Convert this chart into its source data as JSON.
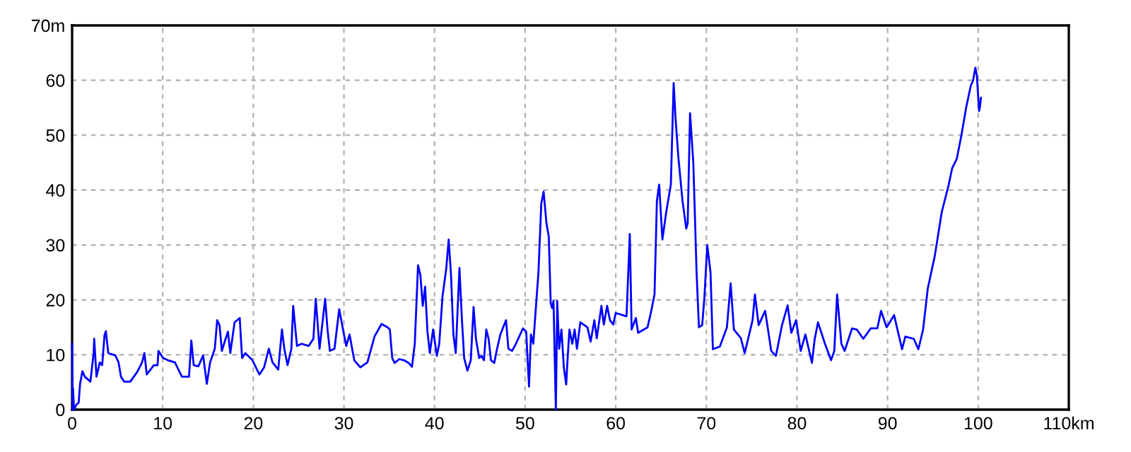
{
  "chart_data": {
    "type": "line",
    "x": [
      0,
      0.05,
      0.1,
      0.21,
      0.47,
      0.73,
      0.88,
      1.14,
      1.4,
      2.02,
      2.38,
      2.44,
      2.69,
      3.06,
      3.32,
      3.58,
      3.73,
      3.99,
      4.77,
      5.13,
      5.39,
      5.75,
      6.42,
      7.2,
      7.72,
      7.98,
      8.24,
      9.02,
      9.43,
      9.53,
      10.05,
      10.57,
      11.35,
      12.12,
      12.9,
      13.16,
      13.42,
      13.94,
      14.46,
      14.87,
      15.23,
      15.75,
      16.01,
      16.27,
      16.53,
      16.94,
      17.2,
      17.46,
      17.93,
      18.5,
      18.76,
      19.12,
      19.9,
      20.67,
      21.19,
      21.71,
      22.12,
      22.75,
      23.16,
      23.42,
      23.78,
      24.2,
      24.4,
      24.82,
      25.34,
      26.11,
      26.63,
      26.89,
      27.31,
      27.93,
      28.19,
      28.45,
      28.96,
      29.48,
      30.0,
      30.26,
      30.62,
      31.14,
      31.81,
      32.59,
      33.37,
      34.15,
      34.81,
      35.07,
      35.33,
      35.59,
      36.11,
      36.63,
      37.15,
      37.51,
      37.82,
      38.18,
      38.44,
      38.7,
      38.96,
      39.22,
      39.48,
      39.84,
      40.26,
      40.52,
      40.88,
      41.3,
      41.56,
      41.82,
      42.08,
      42.34,
      42.75,
      43.01,
      43.27,
      43.63,
      44.0,
      44.31,
      44.57,
      44.93,
      45.19,
      45.45,
      45.71,
      45.97,
      46.23,
      46.59,
      46.9,
      47.27,
      47.89,
      48.15,
      48.56,
      48.98,
      49.34,
      49.76,
      50.12,
      50.27,
      50.43,
      50.64,
      50.9,
      51.16,
      51.47,
      51.78,
      52.04,
      52.35,
      52.61,
      52.82,
      52.97,
      53.13,
      53.39,
      53.54,
      53.75,
      54.01,
      54.27,
      54.53,
      54.69,
      54.89,
      55.2,
      55.46,
      55.72,
      56.09,
      56.45,
      56.87,
      57.23,
      57.64,
      57.9,
      58.42,
      58.68,
      59.05,
      59.36,
      59.72,
      60.0,
      61.19,
      61.55,
      61.75,
      62.22,
      62.47,
      63.51,
      63.87,
      64.28,
      64.54,
      64.79,
      65.15,
      65.57,
      66.08,
      66.39,
      66.6,
      66.91,
      67.37,
      67.78,
      67.94,
      68.2,
      68.56,
      68.92,
      69.18,
      69.54,
      69.79,
      70.1,
      70.46,
      70.72,
      71.49,
      72.27,
      72.68,
      73.04,
      73.81,
      74.23,
      75.1,
      75.36,
      75.77,
      76.49,
      77.16,
      77.68,
      78.35,
      78.97,
      79.38,
      79.9,
      80.41,
      80.93,
      81.65,
      81.96,
      82.32,
      83.09,
      83.76,
      84.12,
      84.43,
      84.9,
      85.26,
      86.08,
      86.6,
      87.32,
      88.14,
      88.87,
      89.28,
      89.9,
      90.72,
      91.6,
      91.96,
      92.89,
      93.4,
      93.92,
      94.43,
      95.21,
      95.98,
      96.75,
      97.13,
      97.64,
      98.15,
      98.67,
      99.18,
      99.44,
      99.69,
      99.85,
      100.1,
      100.2,
      100.3
    ],
    "series": [
      {
        "color": "#0000ff",
        "values": [
          12,
          0,
          3.9,
          0,
          0.9,
          1.3,
          4.7,
          7,
          6,
          5.1,
          10.3,
          12.9,
          6,
          8.6,
          8.1,
          13.6,
          14.3,
          10.3,
          9.9,
          8.6,
          6,
          5.1,
          5.1,
          6.9,
          8.6,
          10.3,
          6.4,
          8.1,
          8.1,
          10.7,
          9.4,
          9,
          8.6,
          6,
          6,
          12.6,
          8.1,
          7.9,
          9.9,
          4.7,
          8.6,
          11.1,
          16.3,
          15.4,
          10.7,
          12.9,
          14.2,
          10.3,
          15.9,
          16.7,
          9.4,
          10.3,
          9,
          6.4,
          7.7,
          11.1,
          8.6,
          7.3,
          14.6,
          11.1,
          8.1,
          11.1,
          18.9,
          11.6,
          12,
          11.6,
          12.9,
          20.2,
          11.1,
          20.2,
          14.6,
          10.7,
          11.1,
          18.3,
          13.7,
          11.6,
          13.7,
          9,
          7.7,
          8.6,
          13.3,
          15.6,
          15,
          14.6,
          9.4,
          8.5,
          9.2,
          9,
          8.5,
          7.8,
          12,
          26.3,
          24.5,
          18.9,
          22.4,
          14.2,
          10.3,
          14.6,
          9.8,
          12,
          20.6,
          25.8,
          31,
          24.5,
          13.7,
          10.3,
          25.8,
          16.8,
          9.4,
          7.1,
          9,
          18.7,
          12.9,
          9.4,
          9.8,
          9,
          14.6,
          12.9,
          9,
          8.5,
          11.1,
          13.7,
          16.3,
          11.1,
          10.7,
          12,
          13.3,
          14.8,
          14.2,
          9,
          4.2,
          13.7,
          12,
          18,
          25,
          37.5,
          39.7,
          34,
          31.5,
          19.4,
          18.5,
          19.8,
          0,
          19.8,
          11.1,
          14.6,
          7.7,
          4.6,
          9.4,
          14.6,
          12,
          14.6,
          11.1,
          15.9,
          15.5,
          15,
          12.4,
          16.3,
          13,
          18.9,
          15.5,
          18.9,
          16.3,
          15.5,
          17.6,
          17,
          32,
          14.6,
          16.7,
          14,
          15,
          17.6,
          21,
          38,
          41,
          31,
          36,
          41,
          59.5,
          53,
          46,
          38,
          33,
          34,
          54,
          45,
          25,
          15,
          15.4,
          20.6,
          30,
          25,
          11,
          11.5,
          15,
          23,
          14.6,
          13,
          10.3,
          16.3,
          21,
          15.4,
          18,
          10.7,
          9.8,
          15.4,
          19,
          14,
          16.3,
          10.7,
          13.7,
          8.5,
          12.9,
          15.9,
          12,
          9,
          10.7,
          21,
          12,
          10.7,
          14.8,
          14.6,
          12.9,
          14.8,
          14.8,
          18,
          15,
          17.2,
          11,
          13.3,
          12.9,
          11,
          14.6,
          22,
          28,
          36,
          41,
          44,
          45.7,
          50,
          55,
          59,
          60,
          62.3,
          60.9,
          54.4,
          55.2,
          56.8
        ]
      }
    ],
    "xlim": [
      0,
      110
    ],
    "ylim": [
      0,
      70
    ],
    "xticks": [
      0,
      10,
      20,
      30,
      40,
      50,
      60,
      70,
      80,
      90,
      100,
      {
        "value": 110,
        "label": "110km"
      }
    ],
    "yticks": [
      0,
      10,
      20,
      30,
      40,
      50,
      60,
      {
        "value": 70,
        "label": "70m"
      }
    ],
    "grid": true,
    "line_style": "solid",
    "marker": "none"
  }
}
